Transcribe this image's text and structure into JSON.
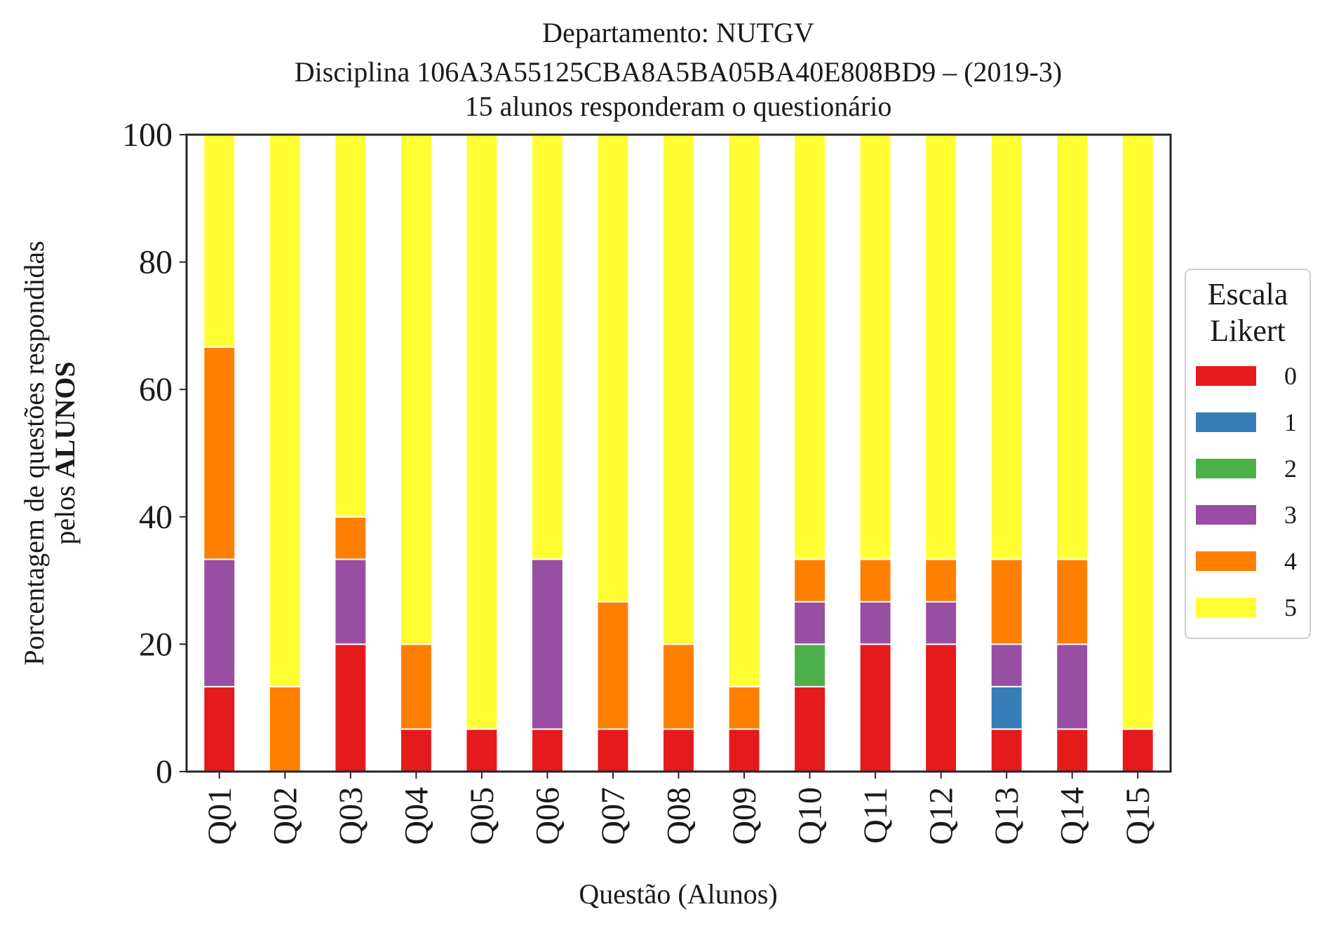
{
  "chart_data": {
    "type": "bar",
    "stacked": true,
    "title": [
      "Departamento: NUTGV",
      "Disciplina 106A3A55125CBA8A5BA05BA40E808BD9 – (2019-3)",
      "15 alunos responderam o questionário"
    ],
    "xlabel": "Questão (Alunos)",
    "ylabel_line1": "Porcentagem de questões respondidas",
    "ylabel_line2_prefix": "pelos ",
    "ylabel_line2_bold": "ALUNOS",
    "ylim": [
      0,
      100
    ],
    "yticks": [
      0,
      20,
      40,
      60,
      80,
      100
    ],
    "categories": [
      "Q01",
      "Q02",
      "Q03",
      "Q04",
      "Q05",
      "Q06",
      "Q07",
      "Q08",
      "Q09",
      "Q10",
      "Q11",
      "Q12",
      "Q13",
      "Q14",
      "Q15"
    ],
    "legend": {
      "title_line1": "Escala",
      "title_line2": "Likert",
      "placement": "right"
    },
    "series": [
      {
        "name": "0",
        "color": "#e41a1c",
        "values": [
          13.33,
          0,
          20,
          6.67,
          6.67,
          6.67,
          6.67,
          6.67,
          6.67,
          13.33,
          20,
          20,
          6.67,
          6.67,
          6.67
        ]
      },
      {
        "name": "1",
        "color": "#377eb8",
        "values": [
          0,
          0,
          0,
          0,
          0,
          0,
          0,
          0,
          0,
          0,
          0,
          0,
          6.67,
          0,
          0
        ]
      },
      {
        "name": "2",
        "color": "#4daf4a",
        "values": [
          0,
          0,
          0,
          0,
          0,
          0,
          0,
          0,
          0,
          6.67,
          0,
          0,
          0,
          0,
          0
        ]
      },
      {
        "name": "3",
        "color": "#984ea3",
        "values": [
          20,
          0,
          13.33,
          0,
          0,
          26.67,
          0,
          0,
          0,
          6.67,
          6.67,
          6.67,
          6.67,
          13.33,
          0
        ]
      },
      {
        "name": "4",
        "color": "#ff7f00",
        "values": [
          33.33,
          13.33,
          6.67,
          13.33,
          0,
          0,
          20,
          13.33,
          6.67,
          6.67,
          6.67,
          6.67,
          13.33,
          13.33,
          0
        ]
      },
      {
        "name": "5",
        "color": "#ffff33",
        "values": [
          33.33,
          86.67,
          60,
          80,
          93.33,
          66.67,
          73.33,
          80,
          86.67,
          66.67,
          66.67,
          66.67,
          66.67,
          66.67,
          93.33
        ]
      }
    ]
  }
}
